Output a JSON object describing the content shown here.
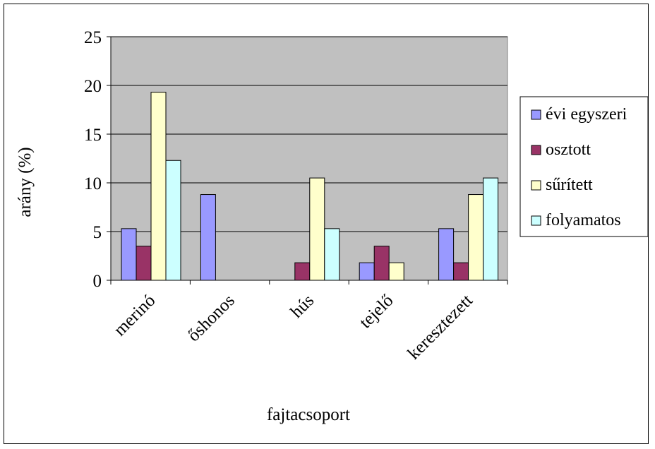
{
  "chart_data": {
    "type": "bar",
    "title": "",
    "xlabel": "fajtacsoport",
    "ylabel": "arány (%)",
    "ylim": [
      0,
      25
    ],
    "yticks": [
      "0",
      "5",
      "10",
      "15",
      "20",
      "25"
    ],
    "grid": true,
    "legend_position": "right",
    "categories": [
      "merinó",
      "őshonos",
      "hús",
      "tejelő",
      "keresztezett"
    ],
    "series": [
      {
        "name": "évi egyszeri",
        "color": "#9999ff",
        "values": [
          5.3,
          8.8,
          0,
          1.8,
          5.3
        ]
      },
      {
        "name": "osztott",
        "color": "#993366",
        "values": [
          3.5,
          0,
          1.8,
          3.5,
          1.8
        ]
      },
      {
        "name": "sűrített",
        "color": "#ffffcc",
        "values": [
          19.3,
          0,
          10.5,
          1.8,
          8.8
        ]
      },
      {
        "name": "folyamatos",
        "color": "#ccffff",
        "values": [
          12.3,
          0,
          5.3,
          0,
          10.5
        ]
      }
    ],
    "plot_background": "#c0c0c0"
  }
}
